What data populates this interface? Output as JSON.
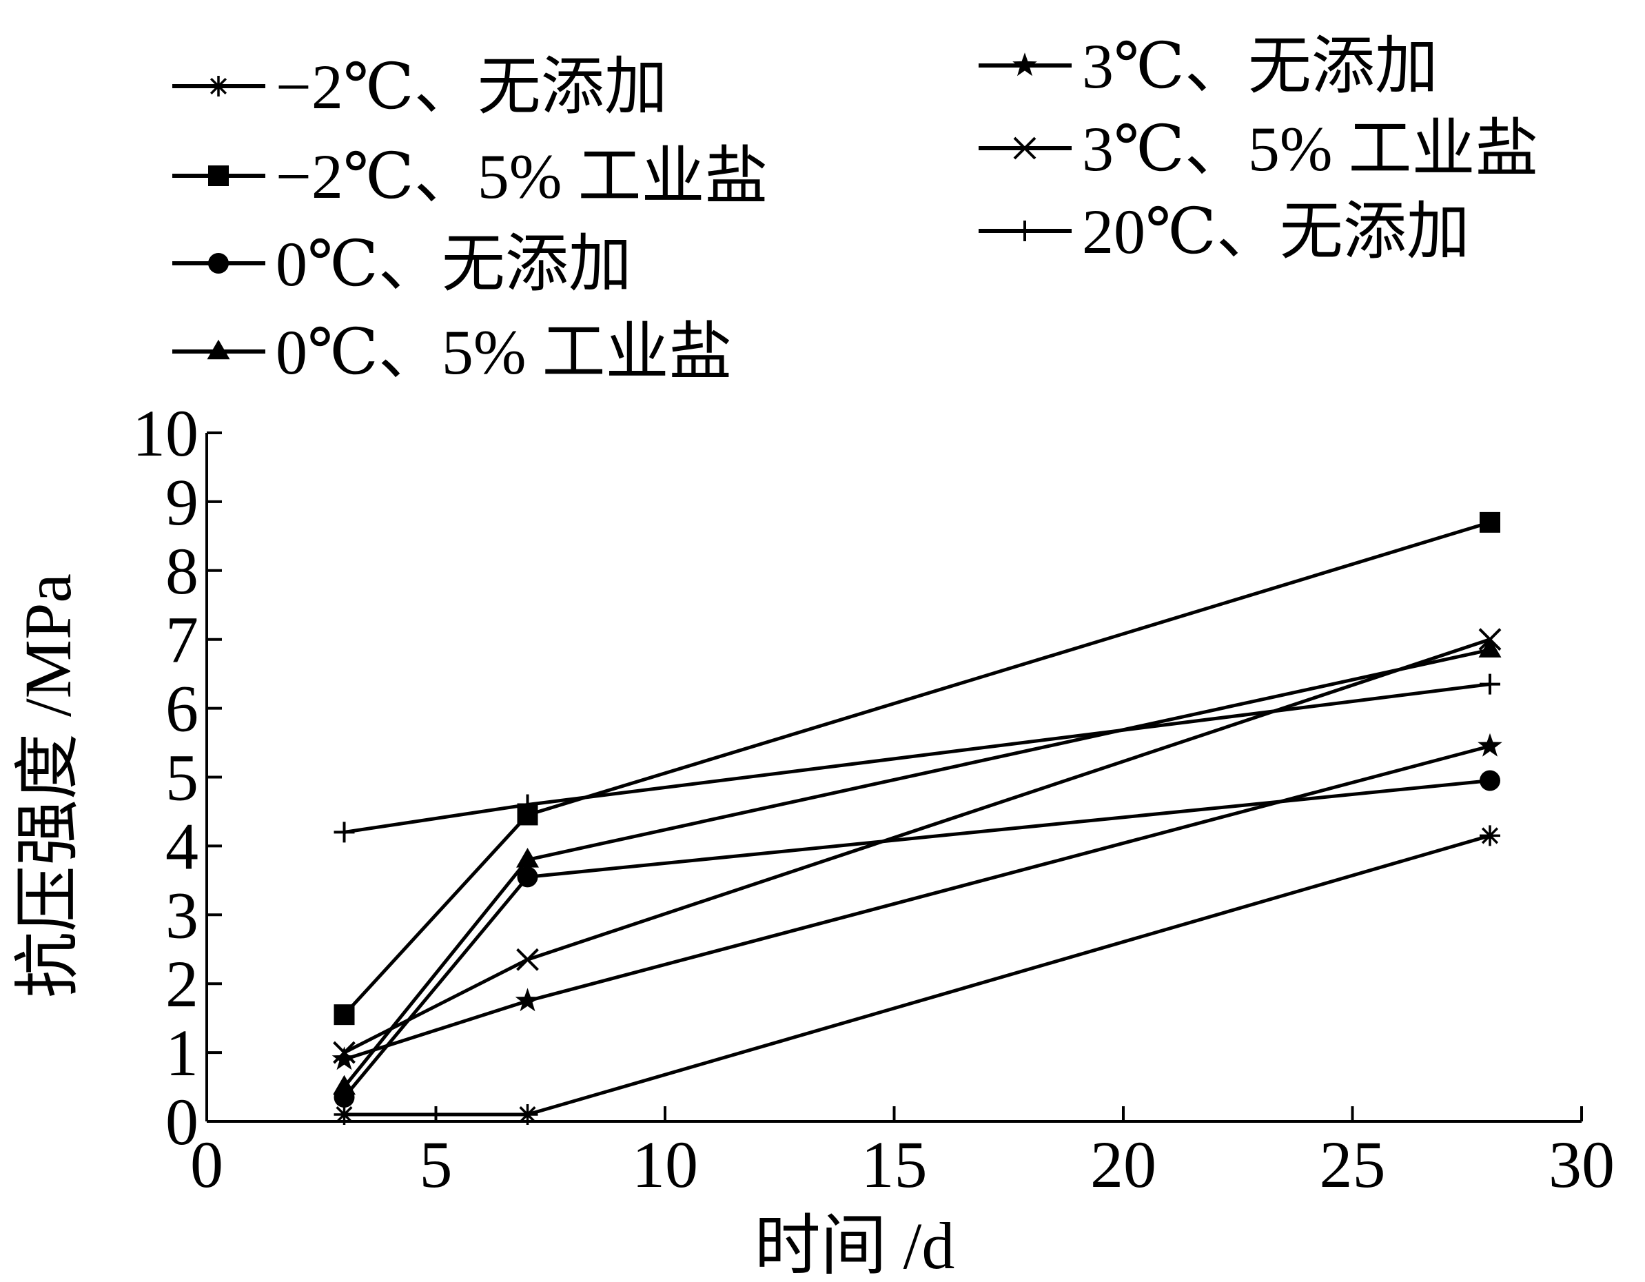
{
  "chart_data": {
    "type": "line",
    "xlabel": "时间 /d",
    "ylabel": "抗压强度 /MPa",
    "xlim": [
      0,
      30
    ],
    "ylim": [
      0,
      10
    ],
    "xticks": [
      0,
      5,
      10,
      15,
      20,
      25,
      30
    ],
    "yticks": [
      0,
      1,
      2,
      3,
      4,
      5,
      6,
      7,
      8,
      9,
      10
    ],
    "grid": false,
    "legend_position": "top",
    "line_color": "#000000",
    "series": [
      {
        "name": "−2℃、无添加",
        "marker": "asterisk",
        "x": [
          3,
          7,
          28
        ],
        "y": [
          0.1,
          0.1,
          4.15
        ]
      },
      {
        "name": "−2℃、5% 工业盐",
        "marker": "square",
        "x": [
          3,
          7,
          28
        ],
        "y": [
          1.55,
          4.45,
          8.7
        ]
      },
      {
        "name": "0℃、无添加",
        "marker": "circle",
        "x": [
          3,
          7,
          28
        ],
        "y": [
          0.35,
          3.55,
          4.95
        ]
      },
      {
        "name": "0℃、5% 工业盐",
        "marker": "triangle",
        "x": [
          3,
          7,
          28
        ],
        "y": [
          0.5,
          3.8,
          6.85
        ]
      },
      {
        "name": "3℃、无添加",
        "marker": "star",
        "x": [
          3,
          7,
          28
        ],
        "y": [
          0.9,
          1.75,
          5.45
        ]
      },
      {
        "name": "3℃、5% 工业盐",
        "marker": "x",
        "x": [
          3,
          7,
          28
        ],
        "y": [
          1.0,
          2.35,
          7.0
        ]
      },
      {
        "name": "20℃、无添加",
        "marker": "plus",
        "x": [
          3,
          7,
          28
        ],
        "y": [
          4.2,
          4.6,
          6.35
        ]
      }
    ]
  }
}
